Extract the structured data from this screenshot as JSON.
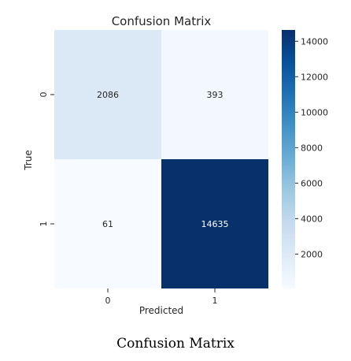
{
  "chart_data": {
    "type": "heatmap",
    "title": "Confusion Matrix",
    "xlabel": "Predicted",
    "ylabel": "True",
    "x_categories": [
      "0",
      "1"
    ],
    "y_categories": [
      "0",
      "1"
    ],
    "values": [
      [
        2086,
        393
      ],
      [
        61,
        14635
      ]
    ],
    "cell_labels": [
      [
        "2086",
        "393"
      ],
      [
        "61",
        "14635"
      ]
    ],
    "colorbar": {
      "range": [
        61,
        14635
      ],
      "ticks": [
        2000,
        4000,
        6000,
        8000,
        10000,
        12000,
        14000
      ],
      "tick_labels": [
        "2000",
        "4000",
        "6000",
        "8000",
        "10000",
        "12000",
        "14000"
      ],
      "colormap": "Blues",
      "color_low": "#f7fbff",
      "color_high": "#08306b"
    }
  },
  "caption": "Confusion Matrix"
}
